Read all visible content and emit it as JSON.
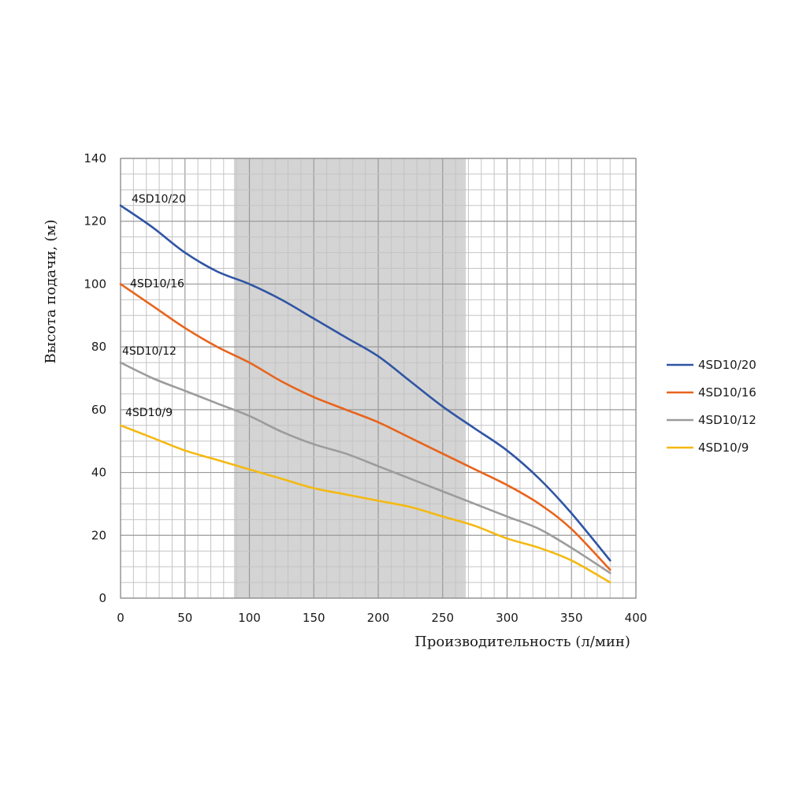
{
  "chart_data": {
    "type": "line",
    "xlabel": "Производительность (л/мин)",
    "ylabel": "Высота подачи, (м)",
    "xlim": [
      0,
      400
    ],
    "ylim": [
      0,
      140
    ],
    "x_ticks": [
      "0",
      "50",
      "100",
      "150",
      "200",
      "250",
      "300",
      "350",
      "400"
    ],
    "y_ticks": [
      "0",
      "20",
      "40",
      "60",
      "80",
      "100",
      "120",
      "140"
    ],
    "grid": true,
    "highlight_band": {
      "x_from": 88,
      "x_to": 268,
      "color": "#d4d4d4"
    },
    "legend_position": "right",
    "series": [
      {
        "name": "4SD10/20",
        "color": "#2f55a4",
        "label": "4SD10/20",
        "x": [
          0,
          25,
          50,
          75,
          100,
          125,
          150,
          175,
          200,
          225,
          250,
          275,
          300,
          325,
          350,
          380
        ],
        "y": [
          125,
          118,
          110,
          104,
          100,
          95,
          89,
          83,
          77,
          69,
          61,
          54,
          47,
          38,
          27,
          12
        ]
      },
      {
        "name": "4SD10/16",
        "color": "#e8641c",
        "label": "4SD10/16",
        "x": [
          0,
          25,
          50,
          75,
          100,
          125,
          150,
          175,
          200,
          225,
          250,
          275,
          300,
          325,
          350,
          380
        ],
        "y": [
          100,
          93,
          86,
          80,
          75,
          69,
          64,
          60,
          56,
          51,
          46,
          41,
          36,
          30,
          22,
          9
        ]
      },
      {
        "name": "4SD10/12",
        "color": "#9c9c9c",
        "label": "4SD10/12",
        "x": [
          0,
          25,
          50,
          75,
          100,
          125,
          150,
          175,
          200,
          225,
          250,
          275,
          300,
          325,
          350,
          380
        ],
        "y": [
          75,
          70,
          66,
          62,
          58,
          53,
          49,
          46,
          42,
          38,
          34,
          30,
          26,
          22,
          16,
          8
        ]
      },
      {
        "name": "4SD10/9",
        "color": "#f4b912",
        "label": "4SD10/9",
        "x": [
          0,
          25,
          50,
          75,
          100,
          125,
          150,
          175,
          200,
          225,
          250,
          275,
          300,
          325,
          350,
          380
        ],
        "y": [
          55,
          51,
          47,
          44,
          41,
          38,
          35,
          33,
          31,
          29,
          26,
          23,
          19,
          16,
          12,
          5
        ]
      }
    ]
  }
}
